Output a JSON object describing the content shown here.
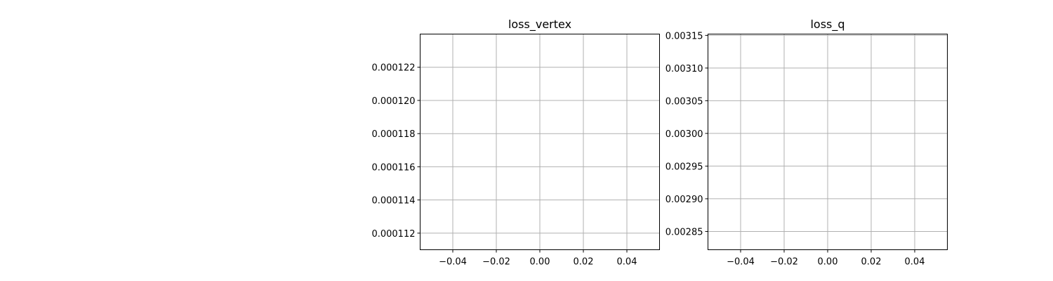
{
  "chart_data": [
    {
      "type": "line",
      "title": "loss_vertex",
      "xlabel": "",
      "ylabel": "",
      "x_ticks": [
        "−0.04",
        "−0.02",
        "0.00",
        "0.02",
        "0.04"
      ],
      "x_tick_values": [
        -0.04,
        -0.02,
        0.0,
        0.02,
        0.04
      ],
      "xlim": [
        -0.055,
        0.055
      ],
      "y_ticks": [
        "0.000112",
        "0.000114",
        "0.000116",
        "0.000118",
        "0.000120",
        "0.000122"
      ],
      "y_tick_values": [
        0.000112,
        0.000114,
        0.000116,
        0.000118,
        0.00012,
        0.000122
      ],
      "ylim": [
        0.000111,
        0.000124
      ],
      "grid": true,
      "series": []
    },
    {
      "type": "line",
      "title": "loss_q",
      "xlabel": "",
      "ylabel": "",
      "x_ticks": [
        "−0.04",
        "−0.02",
        "0.00",
        "0.02",
        "0.04"
      ],
      "x_tick_values": [
        -0.04,
        -0.02,
        0.0,
        0.02,
        0.04
      ],
      "xlim": [
        -0.055,
        0.055
      ],
      "y_ticks": [
        "0.00285",
        "0.00290",
        "0.00295",
        "0.00300",
        "0.00305",
        "0.00310",
        "0.00315"
      ],
      "y_tick_values": [
        0.00285,
        0.0029,
        0.00295,
        0.003,
        0.00305,
        0.0031,
        0.00315
      ],
      "ylim": [
        0.002822,
        0.003152
      ],
      "grid": true,
      "series": []
    }
  ]
}
